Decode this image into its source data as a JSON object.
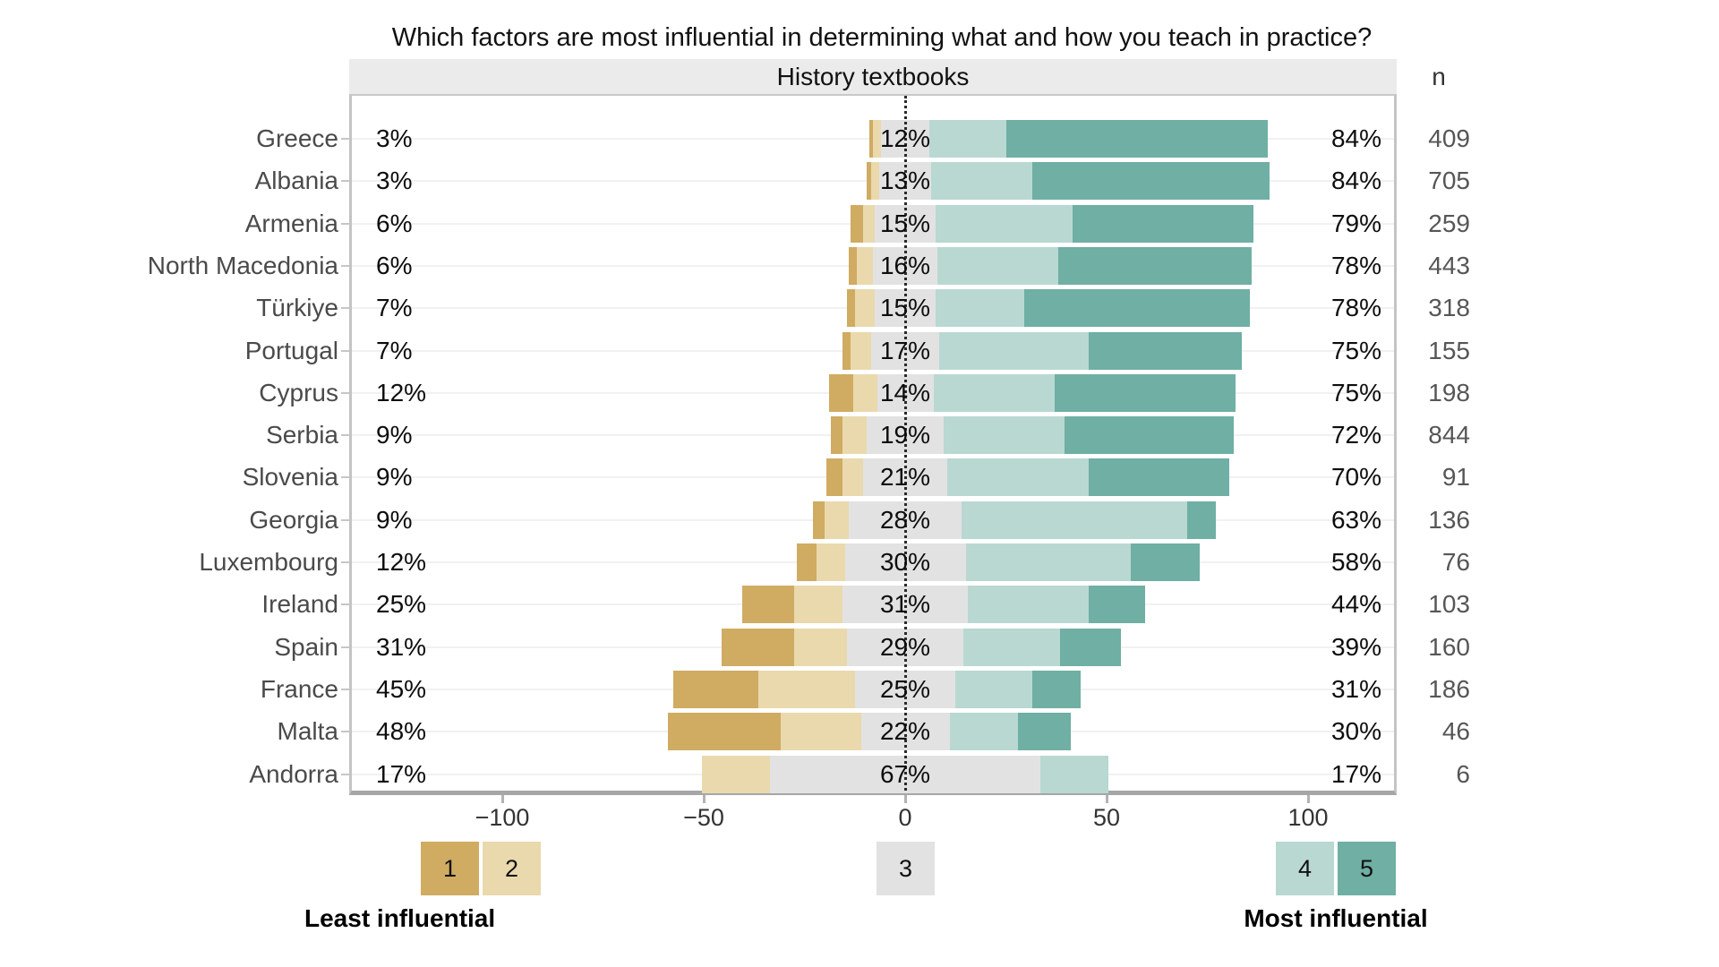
{
  "title": "Which factors are most influential in determining what and how you teach in practice?",
  "panel": {
    "header": "History textbooks",
    "n_header": "n"
  },
  "legend": {
    "items": [
      {
        "label": "1",
        "color": "#d0ab62"
      },
      {
        "label": "2",
        "color": "#e9d9ad"
      },
      {
        "label": "3",
        "color": "#e2e2e2"
      },
      {
        "label": "4",
        "color": "#b9d8d2"
      },
      {
        "label": "5",
        "color": "#6fafa4"
      }
    ],
    "least_label": "Least influential",
    "most_label": "Most influential"
  },
  "chart_data": {
    "type": "bar",
    "variant": "diverging-stacked-likert",
    "title": "History textbooks",
    "xlim": [
      -138,
      122
    ],
    "x_ticks": [
      {
        "v": -100,
        "label": "−100"
      },
      {
        "v": -50,
        "label": "−50"
      },
      {
        "v": 0,
        "label": "0"
      },
      {
        "v": 50,
        "label": "50"
      },
      {
        "v": 100,
        "label": "100"
      }
    ],
    "grid": "minimal",
    "legend_position": "bottom",
    "categories": [
      "Greece",
      "Albania",
      "Armenia",
      "North Macedonia",
      "Türkiye",
      "Portugal",
      "Cyprus",
      "Serbia",
      "Slovenia",
      "Georgia",
      "Luxembourg",
      "Ireland",
      "Spain",
      "France",
      "Malta",
      "Andorra"
    ],
    "series": [
      {
        "name": "1",
        "values": [
          1,
          1,
          3,
          2,
          2,
          2,
          6,
          3,
          4,
          3,
          5,
          13,
          18,
          21,
          28,
          0
        ]
      },
      {
        "name": "2",
        "values": [
          2,
          2,
          3,
          4,
          5,
          5,
          6,
          6,
          5,
          6,
          7,
          12,
          13,
          24,
          20,
          17
        ]
      },
      {
        "name": "3",
        "values": [
          12,
          13,
          15,
          16,
          15,
          17,
          14,
          19,
          21,
          28,
          30,
          31,
          29,
          25,
          22,
          67
        ]
      },
      {
        "name": "4",
        "values": [
          19,
          25,
          34,
          30,
          22,
          37,
          30,
          30,
          35,
          56,
          41,
          30,
          24,
          19,
          17,
          17
        ]
      },
      {
        "name": "5",
        "values": [
          65,
          59,
          45,
          48,
          56,
          38,
          45,
          42,
          35,
          7,
          17,
          14,
          15,
          12,
          13,
          0
        ]
      }
    ],
    "row_labels": {
      "left": [
        "3%",
        "3%",
        "6%",
        "6%",
        "7%",
        "7%",
        "12%",
        "9%",
        "9%",
        "9%",
        "12%",
        "25%",
        "31%",
        "45%",
        "48%",
        "17%"
      ],
      "mid": [
        "12%",
        "13%",
        "15%",
        "16%",
        "15%",
        "17%",
        "14%",
        "19%",
        "21%",
        "28%",
        "30%",
        "31%",
        "29%",
        "25%",
        "22%",
        "67%"
      ],
      "right": [
        "84%",
        "84%",
        "79%",
        "78%",
        "78%",
        "75%",
        "75%",
        "72%",
        "70%",
        "63%",
        "58%",
        "44%",
        "39%",
        "31%",
        "30%",
        "17%"
      ],
      "n": [
        "409",
        "705",
        "259",
        "443",
        "318",
        "155",
        "198",
        "844",
        "91",
        "136",
        "76",
        "103",
        "160",
        "186",
        "46",
        "6"
      ]
    }
  }
}
